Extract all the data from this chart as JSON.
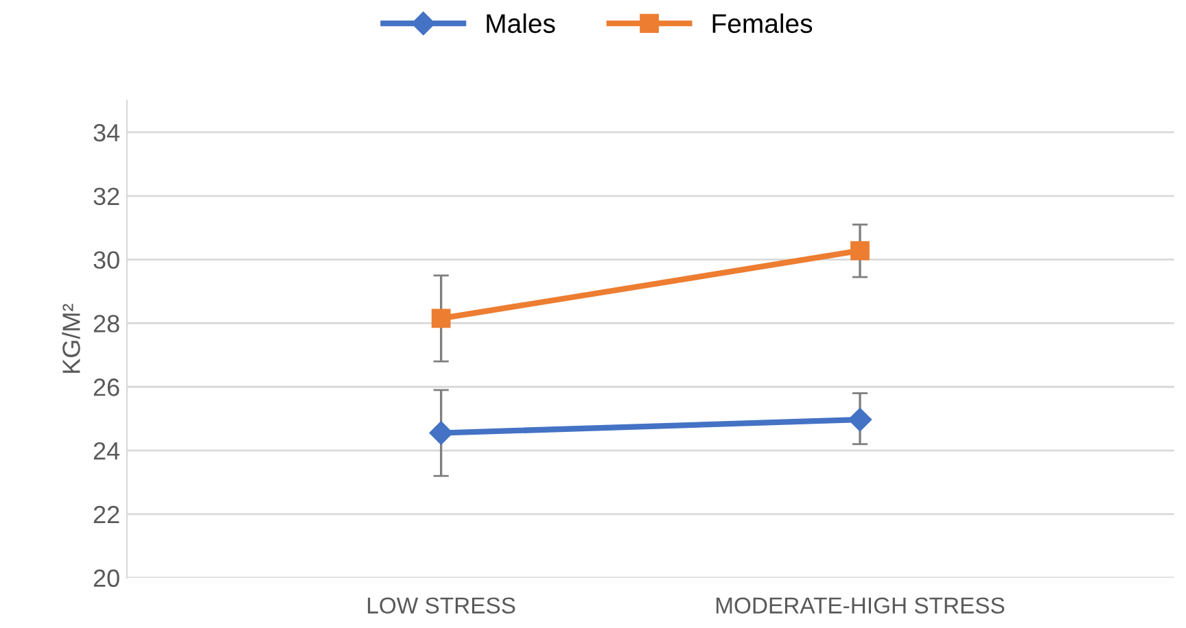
{
  "chart_data": {
    "type": "line",
    "ylabel": "KG/M²",
    "categories": [
      "LOW STRESS",
      "MODERATE-HIGH STRESS"
    ],
    "series": [
      {
        "name": "Males",
        "color": "#4472c4",
        "marker": "diamond",
        "values": [
          24.55,
          24.97
        ],
        "errors": [
          [
            23.2,
            25.9
          ],
          [
            24.2,
            25.8
          ]
        ]
      },
      {
        "name": "Females",
        "color": "#ed7d31",
        "marker": "square",
        "values": [
          28.15,
          30.28
        ],
        "errors": [
          [
            26.8,
            29.5
          ],
          [
            29.45,
            31.1
          ]
        ]
      }
    ],
    "ylim": [
      20,
      35
    ],
    "yticks": [
      20,
      22,
      24,
      26,
      28,
      30,
      32,
      34
    ],
    "grid": "y",
    "legend": "top"
  }
}
